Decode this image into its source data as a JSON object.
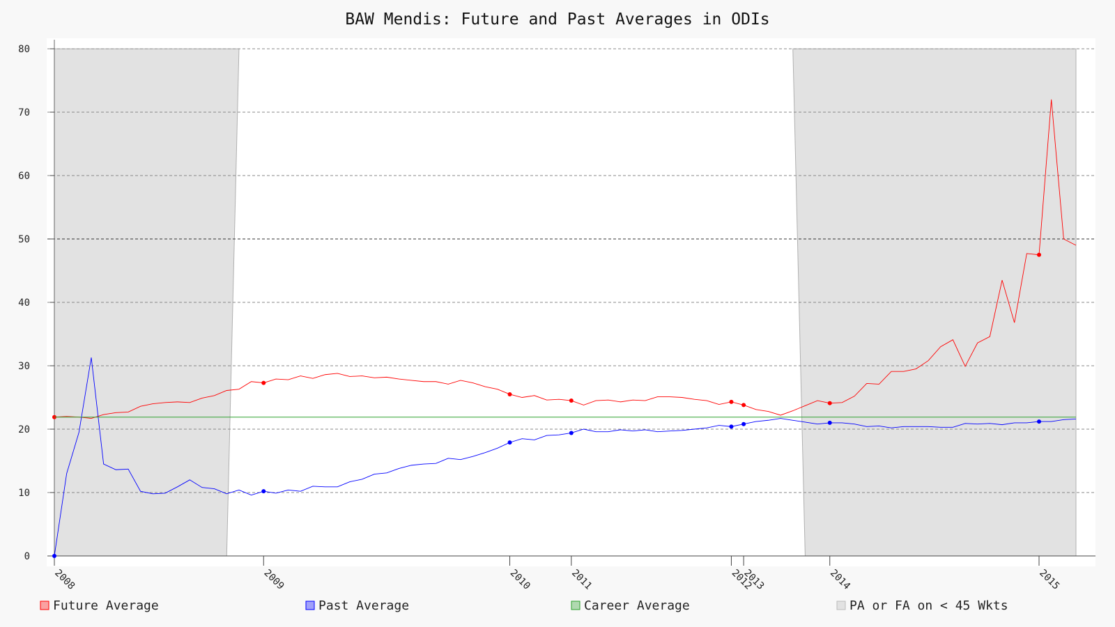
{
  "chart_data": {
    "type": "line",
    "title": "BAW Mendis: Future and Past Averages in ODIs",
    "xlabel": "",
    "ylabel": "",
    "ylim": [
      0,
      80
    ],
    "y_ticks": [
      0,
      10,
      20,
      30,
      40,
      50,
      60,
      70,
      80
    ],
    "x_index_range": [
      0,
      83
    ],
    "x_ticks": [
      {
        "label": "2008",
        "index": 0
      },
      {
        "label": "2009",
        "index": 17
      },
      {
        "label": "2010",
        "index": 37
      },
      {
        "label": "2011",
        "index": 42
      },
      {
        "label": "2012",
        "index": 55
      },
      {
        "label": "2013",
        "index": 56
      },
      {
        "label": "2014",
        "index": 63
      },
      {
        "label": "2015",
        "index": 80
      }
    ],
    "grid": "horizontal-dashed",
    "legend_position": "bottom",
    "shaded_regions": {
      "name": "PA or FA on < 45 Wkts",
      "color": "#e2e2e2",
      "polygons": [
        [
          [
            0,
            80
          ],
          [
            15,
            80
          ],
          [
            14,
            0
          ],
          [
            0,
            0
          ]
        ],
        [
          [
            60,
            80
          ],
          [
            83,
            80
          ],
          [
            83,
            0
          ],
          [
            61,
            0
          ]
        ]
      ]
    },
    "series": [
      {
        "name": "Future Average",
        "color": "#ff0000",
        "values": [
          21.9,
          22.0,
          21.9,
          21.7,
          22.3,
          22.6,
          22.7,
          23.6,
          24.0,
          24.2,
          24.3,
          24.2,
          24.9,
          25.3,
          26.1,
          26.3,
          27.5,
          27.3,
          27.9,
          27.8,
          28.4,
          28.0,
          28.6,
          28.8,
          28.3,
          28.4,
          28.1,
          28.2,
          27.9,
          27.7,
          27.5,
          27.5,
          27.1,
          27.7,
          27.3,
          26.7,
          26.3,
          25.5,
          25.0,
          25.3,
          24.6,
          24.7,
          24.5,
          23.8,
          24.5,
          24.6,
          24.3,
          24.6,
          24.5,
          25.1,
          25.1,
          25.0,
          24.7,
          24.5,
          23.9,
          24.3,
          23.8,
          23.1,
          22.8,
          22.2,
          22.9,
          23.7,
          24.5,
          24.1,
          24.2,
          25.2,
          27.2,
          27.1,
          29.1,
          29.1,
          29.5,
          30.8,
          33.0,
          34.1,
          29.9,
          33.6,
          34.6,
          43.5,
          36.8,
          47.7,
          47.5,
          72.0,
          50.0,
          49.0
        ],
        "marker_indices": [
          0,
          17,
          37,
          42,
          55,
          56,
          63,
          80
        ]
      },
      {
        "name": "Past Average",
        "color": "#0000ff",
        "values": [
          0.0,
          13.0,
          19.5,
          31.3,
          14.5,
          13.6,
          13.7,
          10.2,
          9.8,
          9.9,
          10.9,
          12.0,
          10.8,
          10.6,
          9.8,
          10.4,
          9.6,
          10.2,
          9.9,
          10.4,
          10.2,
          11.0,
          10.9,
          10.9,
          11.7,
          12.1,
          12.9,
          13.1,
          13.8,
          14.3,
          14.5,
          14.6,
          15.4,
          15.2,
          15.7,
          16.3,
          17.0,
          17.9,
          18.5,
          18.3,
          19.0,
          19.1,
          19.4,
          20.0,
          19.6,
          19.6,
          19.9,
          19.7,
          19.9,
          19.6,
          19.7,
          19.8,
          20.0,
          20.2,
          20.6,
          20.4,
          20.8,
          21.2,
          21.4,
          21.7,
          21.4,
          21.1,
          20.8,
          21.0,
          21.0,
          20.8,
          20.4,
          20.5,
          20.2,
          20.4,
          20.4,
          20.4,
          20.3,
          20.3,
          20.9,
          20.8,
          20.9,
          20.7,
          21.0,
          21.0,
          21.2,
          21.2,
          21.5,
          21.6
        ],
        "marker_indices": [
          0,
          17,
          37,
          42,
          55,
          56,
          63,
          80
        ]
      },
      {
        "name": "Career Average",
        "color": "#2ca02c",
        "values": [
          21.9
        ]
      }
    ],
    "legend": [
      {
        "label": "Future Average",
        "color": "#ff0000"
      },
      {
        "label": "Past Average",
        "color": "#0000ff"
      },
      {
        "label": "Career Average",
        "color": "#2ca02c"
      },
      {
        "label": "PA or FA on < 45 Wkts",
        "color": "#bbbbbb"
      }
    ]
  }
}
